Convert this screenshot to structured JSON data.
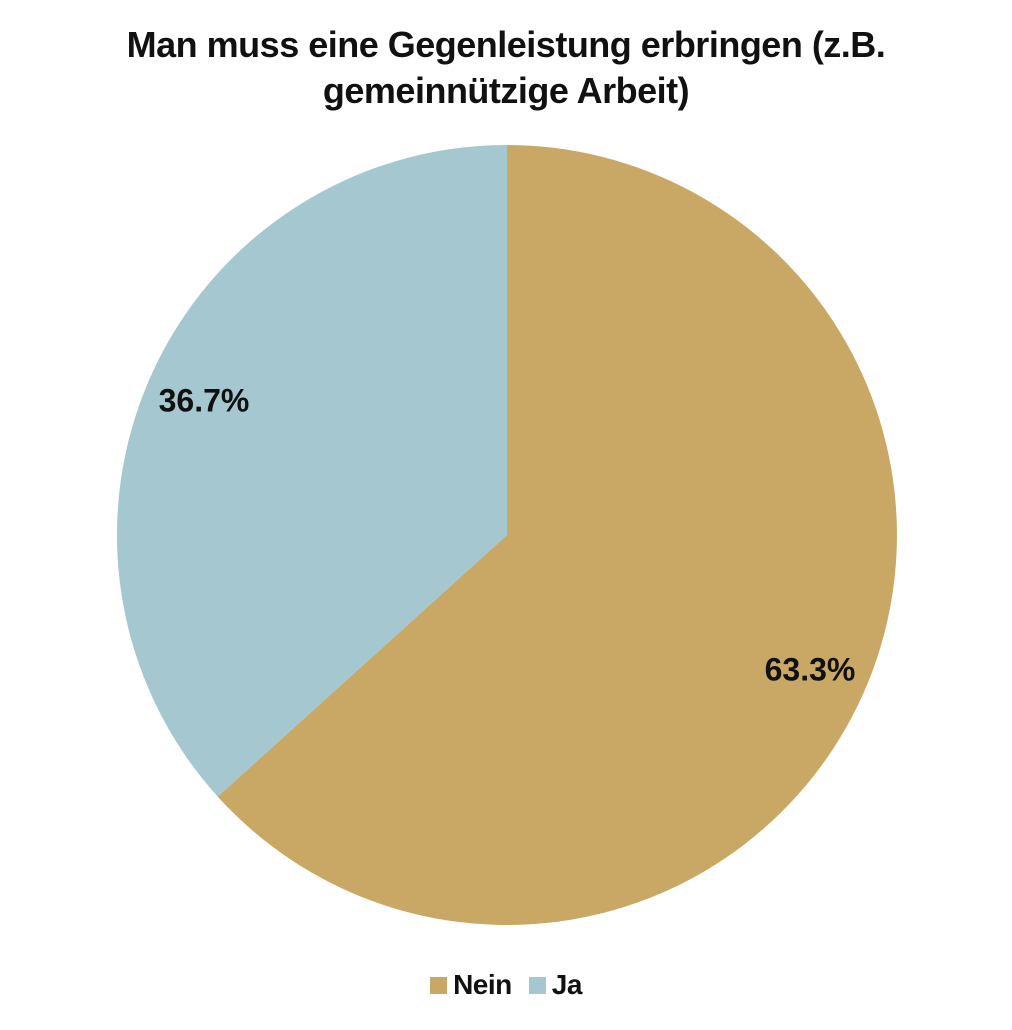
{
  "title": "Man muss eine Gegenleistung erbringen (z.B. gemeinnützige Arbeit)",
  "chart_data": {
    "type": "pie",
    "title": "Man muss eine Gegenleistung erbringen (z.B. gemeinnützige Arbeit)",
    "start_angle_deg": 0,
    "direction": "clockwise",
    "legend_position": "bottom",
    "background_color": "#ffffff",
    "value_label_color": "#111111",
    "categories": [
      "Nein",
      "Ja"
    ],
    "values": [
      63.3,
      36.7
    ],
    "slices": [
      {
        "label": "Nein",
        "value": 63.3,
        "display": "63.3%",
        "color": "#C9A865"
      },
      {
        "label": "Ja",
        "value": 36.7,
        "display": "36.7%",
        "color": "#A5C8D0"
      }
    ]
  }
}
